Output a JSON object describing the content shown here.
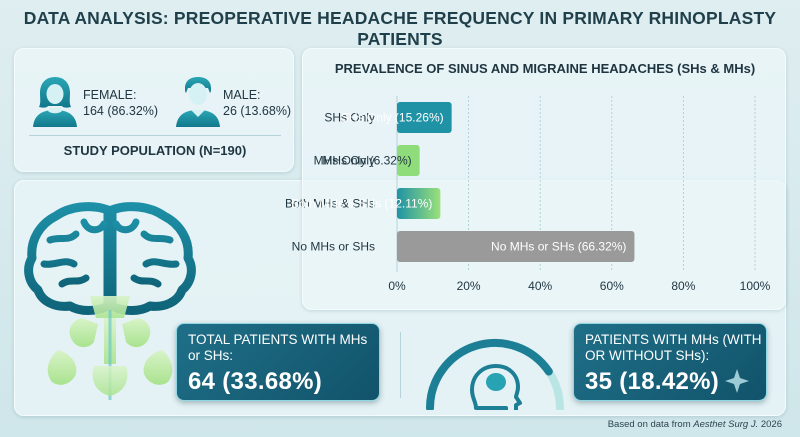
{
  "title": "DATA ANALYSIS: PREOPERATIVE HEADACHE FREQUENCY IN PRIMARY RHINOPLASTY PATIENTS",
  "population": {
    "female_label": "FEMALE:",
    "female_value": "164 (86.32%)",
    "male_label": "MALE:",
    "male_value": "26 (13.68%)",
    "footer": "STUDY POPULATION (N=190)"
  },
  "chart_data": {
    "type": "bar",
    "orientation": "horizontal",
    "title": "PREVALENCE OF SINUS AND MIGRAINE HEADACHES (SHs & MHs)",
    "categories": [
      "SHs Only",
      "MHs Only",
      "Both MHs & SHs",
      "No MHs or SHs"
    ],
    "values": [
      15.26,
      6.32,
      12.11,
      66.32
    ],
    "data_labels": [
      "SHs Only (15.26%)",
      "MHs Only (6.32%)",
      "Both MHs & SHs (12.11%)",
      "No MHs or SHs (66.32%)"
    ],
    "xlim": [
      0,
      100
    ],
    "x_ticks": [
      "0%",
      "20%",
      "40%",
      "60%",
      "80%",
      "100%"
    ],
    "grid": true,
    "colors": [
      "#1f93a5",
      "#8fdc7a",
      "#2aa3a8",
      "#9a9a9a"
    ]
  },
  "stats": {
    "total_label": "TOTAL PATIENTS WITH MHs or SHs:",
    "total_value": "64 (33.68%)",
    "mh_label": "PATIENTS WITH MHs (WITH OR WITHOUT SHs):",
    "mh_value": "35 (18.42%)",
    "mh_gauge_fraction": 0.1842
  },
  "footer": {
    "prefix": "Based on data from ",
    "journal": "Aesthet Surg J.",
    "year": " 2026"
  },
  "icons": {
    "female": "female-person-icon",
    "male": "male-person-icon",
    "brain": "brain-sinus-icon",
    "head": "head-profile-icon"
  }
}
